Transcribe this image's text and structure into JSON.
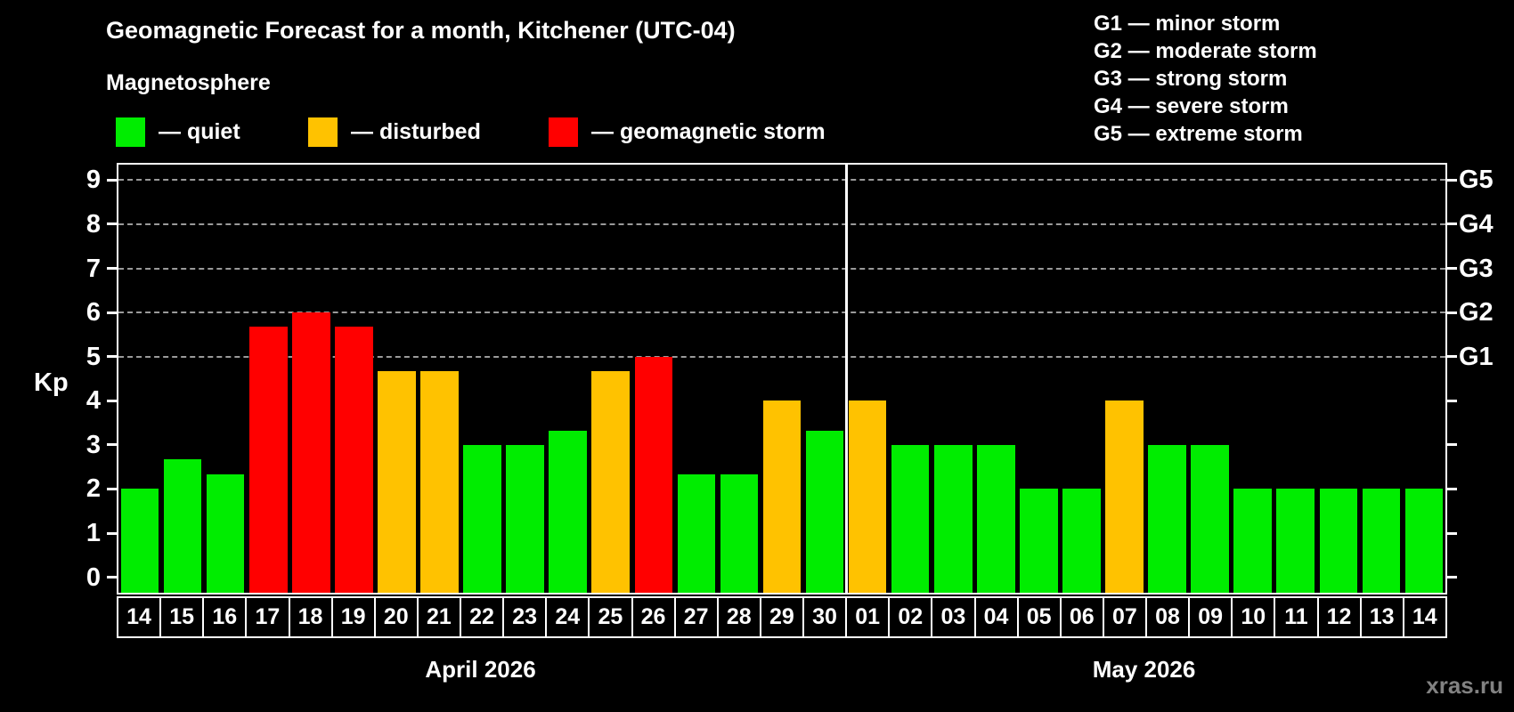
{
  "title": "Geomagnetic Forecast for a month, Kitchener (UTC-04)",
  "subtitle": "Magnetosphere",
  "legend": {
    "items": [
      {
        "key": "quiet",
        "label": "— quiet",
        "color": "#00ed00"
      },
      {
        "key": "disturbed",
        "label": "— disturbed",
        "color": "#ffc200"
      },
      {
        "key": "storm",
        "label": "— geomagnetic storm",
        "color": "#ff0000"
      }
    ]
  },
  "g_legend": [
    "G1 — minor storm",
    "G2 — moderate storm",
    "G3 — strong storm",
    "G4 — severe storm",
    "G5 — extreme storm"
  ],
  "watermark": "xras.ru",
  "chart_data": {
    "type": "bar",
    "title": "Geomagnetic Forecast for a month, Kitchener (UTC-04)",
    "ylabel": "Kp",
    "xlabel": "",
    "ylim": [
      -0.35,
      9.35
    ],
    "y_ticks": [
      0,
      1,
      2,
      3,
      4,
      5,
      6,
      7,
      8,
      9
    ],
    "gridlines_at": [
      5,
      6,
      7,
      8,
      9
    ],
    "grid": "horizontal dashed at storm levels G1–G5",
    "legend_position": "top",
    "right_axis": [
      {
        "kp": 5,
        "label": "G1"
      },
      {
        "kp": 6,
        "label": "G2"
      },
      {
        "kp": 7,
        "label": "G3"
      },
      {
        "kp": 8,
        "label": "G4"
      },
      {
        "kp": 9,
        "label": "G5"
      }
    ],
    "months": [
      {
        "label": "April 2026",
        "days": 17
      },
      {
        "label": "May 2026",
        "days": 14
      }
    ],
    "categories": [
      "14",
      "15",
      "16",
      "17",
      "18",
      "19",
      "20",
      "21",
      "22",
      "23",
      "24",
      "25",
      "26",
      "27",
      "28",
      "29",
      "30",
      "01",
      "02",
      "03",
      "04",
      "05",
      "06",
      "07",
      "08",
      "09",
      "10",
      "11",
      "12",
      "13",
      "14"
    ],
    "values": [
      2,
      2.67,
      2.33,
      5.67,
      6,
      5.67,
      4.67,
      4.67,
      3,
      3,
      3.33,
      4.67,
      5,
      2.33,
      2.33,
      4,
      3.33,
      4,
      3,
      3,
      3,
      2,
      2,
      4,
      3,
      3,
      2,
      2,
      2,
      2,
      2
    ],
    "status": [
      "quiet",
      "quiet",
      "quiet",
      "storm",
      "storm",
      "storm",
      "disturbed",
      "disturbed",
      "quiet",
      "quiet",
      "quiet",
      "disturbed",
      "storm",
      "quiet",
      "quiet",
      "disturbed",
      "quiet",
      "disturbed",
      "quiet",
      "quiet",
      "quiet",
      "quiet",
      "quiet",
      "disturbed",
      "quiet",
      "quiet",
      "quiet",
      "quiet",
      "quiet",
      "quiet",
      "quiet"
    ],
    "colors": {
      "quiet": "#00ed00",
      "disturbed": "#ffc200",
      "storm": "#ff0000"
    }
  }
}
